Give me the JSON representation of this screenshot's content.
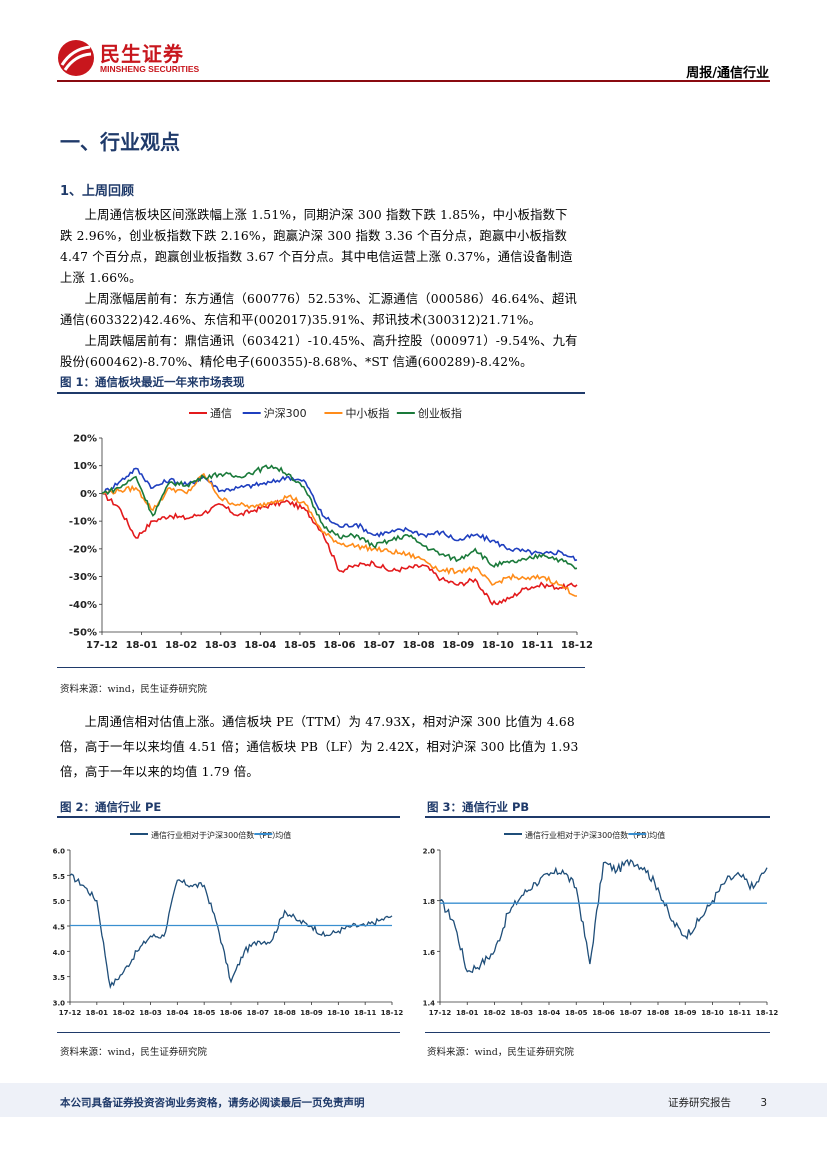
{
  "header": {
    "logo_cn": "民生证券",
    "logo_en": "MINSHENG SECURITIES",
    "report_label": "周报/通信行业",
    "brand_color": "#c8161d"
  },
  "section": {
    "title": "一、行业观点",
    "subtitle": "1、上周回顾"
  },
  "paragraphs": [
    "上周通信板块区间涨跌幅上涨 1.51%，同期沪深 300 指数下跌 1.85%，中小板指数下跌 2.96%，创业板指数下跌 2.16%，跑赢沪深 300 指数 3.36 个百分点，跑赢中小板指数 4.47 个百分点，跑赢创业板指数 3.67 个百分点。其中电信运营上涨 0.37%，通信设备制造上涨 1.66%。",
    "上周涨幅居前有：东方通信（600776）52.53%、汇源通信（000586）46.64%、超讯通信(603322)42.46%、东信和平(002017)35.91%、邦讯技术(300312)21.71%。",
    "上周跌幅居前有：鼎信通讯（603421）-10.45%、高升控股（000971）-9.54%、九有股份(600462)-8.70%、精伦电子(600355)-8.68%、*ST 信通(600289)-8.42%。",
    "上周通信相对估值上涨。通信板块 PE（TTM）为 47.93X，相对沪深 300 比值为 4.68 倍，高于一年以来均值 4.51 倍；通信板块 PB（LF）为 2.42X，相对沪深 300 比值为 1.93 倍，高于一年以来的均值 1.79 倍。"
  ],
  "figures": [
    {
      "title": "图 1：通信板块最近一年来市场表现",
      "source": "资料来源：wind，民生证券研究院"
    },
    {
      "title": "图 2：通信行业 PE",
      "source": "资料来源：wind，民生证券研究院"
    },
    {
      "title": "图 3：通信行业 PB",
      "source": "资料来源：wind，民生证券研究院"
    }
  ],
  "chart_data": [
    {
      "type": "line",
      "title": "通信板块最近一年来市场表现",
      "xlabel": "",
      "ylabel": "",
      "x_ticks": [
        "17-12",
        "18-01",
        "18-02",
        "18-03",
        "18-04",
        "18-05",
        "18-06",
        "18-07",
        "18-08",
        "18-09",
        "18-10",
        "18-11",
        "18-12"
      ],
      "y_ticks": [
        "20%",
        "10%",
        "0%",
        "-10%",
        "-20%",
        "-30%",
        "-40%",
        "-50%"
      ],
      "ylim": [
        -50,
        20
      ],
      "legend_position": "top",
      "series": [
        {
          "name": "通信",
          "color": "#e31a1c",
          "values": [
            0,
            -5,
            -16,
            -10,
            -8,
            -9,
            -7,
            -4,
            -8,
            -6,
            -4,
            -3,
            -6,
            -14,
            -28,
            -26,
            -25,
            -28,
            -27,
            -26,
            -31,
            -33,
            -31,
            -40,
            -38,
            -34,
            -33,
            -34,
            -33
          ]
        },
        {
          "name": "沪深300",
          "color": "#1f3fbf",
          "values": [
            0,
            4,
            9,
            2,
            5,
            3,
            6,
            1,
            2,
            3,
            4,
            6,
            4,
            -8,
            -12,
            -11,
            -15,
            -14,
            -13,
            -15,
            -14,
            -17,
            -15,
            -17,
            -20,
            -21,
            -22,
            -21,
            -24
          ]
        },
        {
          "name": "中小板指",
          "color": "#ff8c1a",
          "values": [
            0,
            1,
            2,
            -6,
            2,
            0,
            7,
            -2,
            -4,
            -5,
            -3,
            -1,
            -4,
            -14,
            -18,
            -19,
            -20,
            -21,
            -22,
            -24,
            -28,
            -28,
            -27,
            -33,
            -30,
            -31,
            -30,
            -33,
            -37
          ]
        },
        {
          "name": "创业板指",
          "color": "#1a7a3a",
          "values": [
            0,
            2,
            6,
            -8,
            4,
            3,
            6,
            7,
            6,
            8,
            10,
            7,
            1,
            -11,
            -16,
            -15,
            -19,
            -17,
            -15,
            -19,
            -22,
            -24,
            -20,
            -26,
            -25,
            -24,
            -22,
            -24,
            -27
          ]
        }
      ]
    },
    {
      "type": "line",
      "title": "通信行业 PE",
      "x_ticks": [
        "17-12",
        "18-01",
        "18-02",
        "18-03",
        "18-04",
        "18-05",
        "18-06",
        "18-07",
        "18-08",
        "18-09",
        "18-10",
        "18-11",
        "18-12"
      ],
      "y_ticks": [
        "6.0",
        "5.5",
        "5.0",
        "4.5",
        "4.0",
        "3.5",
        "3.0"
      ],
      "ylim": [
        3.0,
        6.0
      ],
      "legend_position": "top",
      "series": [
        {
          "name": "通信行业相对于沪深300倍数（PE）",
          "color": "#1f4e79",
          "values": [
            5.5,
            5.3,
            5.0,
            3.3,
            3.6,
            4.0,
            4.3,
            4.3,
            5.4,
            5.3,
            5.3,
            4.5,
            3.4,
            4.0,
            4.2,
            4.2,
            4.8,
            4.6,
            4.5,
            4.3,
            4.4,
            4.5,
            4.5,
            4.6,
            4.7
          ]
        },
        {
          "name": "均值",
          "color": "#3a8fd0",
          "values": [
            4.51,
            4.51
          ]
        }
      ]
    },
    {
      "type": "line",
      "title": "通信行业 PB",
      "x_ticks": [
        "17-12",
        "18-01",
        "18-02",
        "18-03",
        "18-04",
        "18-05",
        "18-06",
        "18-07",
        "18-08",
        "18-09",
        "18-10",
        "18-11",
        "18-12"
      ],
      "y_ticks": [
        "2.0",
        "1.8",
        "1.6",
        "1.4"
      ],
      "ylim": [
        1.4,
        2.0
      ],
      "legend_position": "top",
      "series": [
        {
          "name": "通信行业相对于沪深300倍数（PB）",
          "color": "#1f4e79",
          "values": [
            1.8,
            1.72,
            1.52,
            1.55,
            1.6,
            1.75,
            1.82,
            1.87,
            1.9,
            1.92,
            1.85,
            1.55,
            1.95,
            1.92,
            1.96,
            1.93,
            1.85,
            1.72,
            1.66,
            1.72,
            1.8,
            1.88,
            1.9,
            1.85,
            1.93
          ]
        },
        {
          "name": "均值",
          "color": "#3a8fd0",
          "values": [
            1.79,
            1.79
          ]
        }
      ]
    }
  ],
  "footer": {
    "disclaimer": "本公司具备证券投资咨询业务资格，请务必阅读最后一页免责声明",
    "report_type": "证券研究报告",
    "page_number": "3"
  }
}
